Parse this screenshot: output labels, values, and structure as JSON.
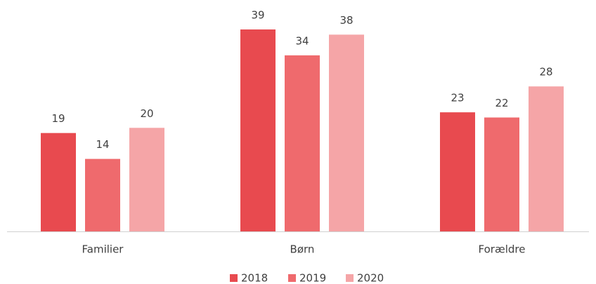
{
  "chart_data": {
    "type": "bar",
    "categories": [
      "Familier",
      "Børn",
      "Forældre"
    ],
    "series": [
      {
        "name": "2018",
        "color": "#e84a4f",
        "values": [
          19,
          39,
          23
        ]
      },
      {
        "name": "2019",
        "color": "#ef6a6d",
        "values": [
          14,
          34,
          22
        ]
      },
      {
        "name": "2020",
        "color": "#f5a5a7",
        "values": [
          20,
          38,
          28
        ]
      }
    ],
    "legend": "bottom"
  }
}
